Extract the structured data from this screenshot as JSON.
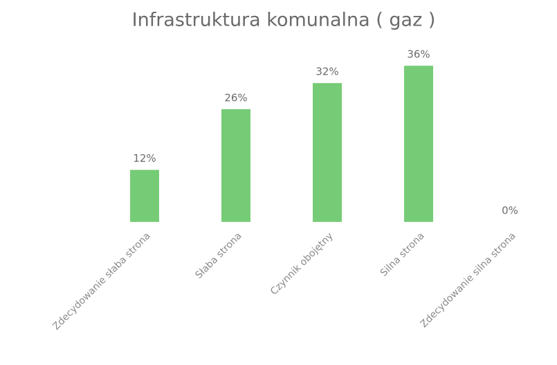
{
  "chart_data": {
    "type": "bar",
    "title": "Infrastruktura komunalna ( gaz )",
    "categories": [
      "Zdecydowanie słaba strona",
      "Słaba strona",
      "Czynnik obojętny",
      "Silna strona",
      "Zdecydowanie silna strona"
    ],
    "values": [
      12,
      26,
      32,
      36,
      0
    ],
    "value_labels": [
      "12%",
      "26%",
      "32%",
      "36%",
      "0%"
    ],
    "color": "#76cc76",
    "ylim": [
      0,
      40
    ]
  }
}
